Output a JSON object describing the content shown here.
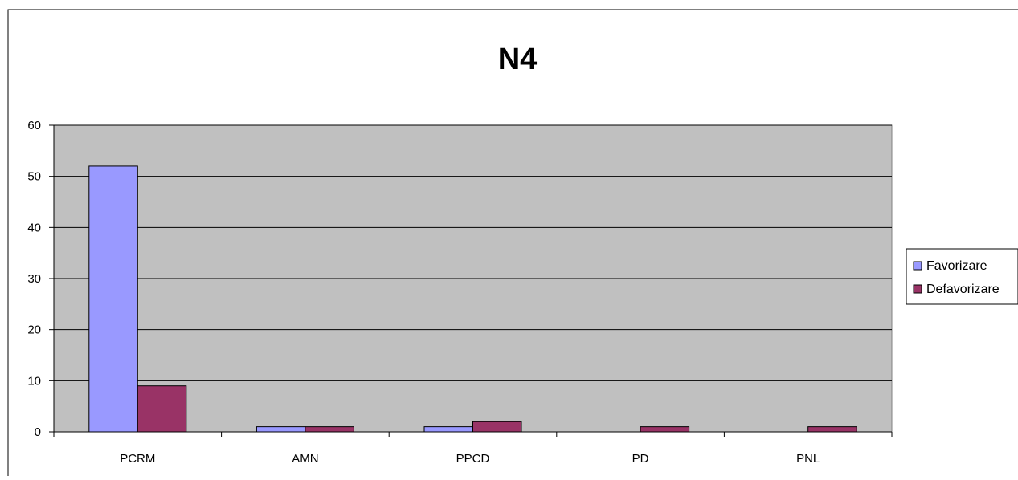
{
  "chart_data": {
    "type": "bar",
    "title": "N4",
    "categories": [
      "PCRM",
      "AMN",
      "PPCD",
      "PD",
      "PNL"
    ],
    "series": [
      {
        "name": "Favorizare",
        "values": [
          52,
          1,
          1,
          0,
          0
        ],
        "color": "#9999ff"
      },
      {
        "name": "Defavorizare",
        "values": [
          9,
          1,
          2,
          1,
          1
        ],
        "color": "#993366"
      }
    ],
    "ylim": [
      0,
      60
    ],
    "yticks": [
      0,
      10,
      20,
      30,
      40,
      50,
      60
    ],
    "xlabel": "",
    "ylabel": "",
    "grid": true,
    "plot_background": "#c0c0c0",
    "legend_position": "right"
  }
}
